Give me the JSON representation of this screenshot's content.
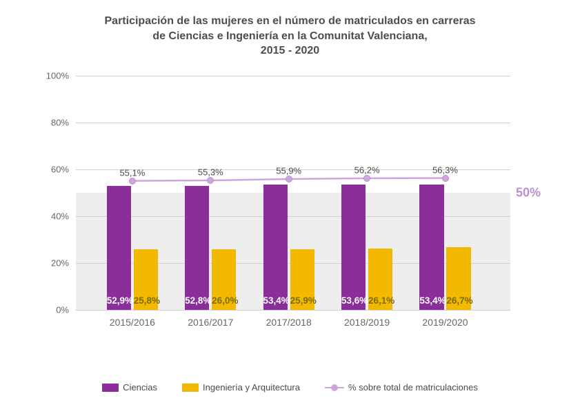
{
  "chart": {
    "type": "bar+line",
    "title_lines": [
      "Participación de las mujeres en el número de matriculados en carreras",
      "de Ciencias e Ingeniería en la Comunitat Valenciana,",
      "2015 - 2020"
    ],
    "title_color": "#4d4d4d",
    "title_fontsize": 16,
    "background_color": "#ffffff",
    "plot_background": "#ffffff",
    "band50_color": "#eeeeee",
    "grid_color": "#cfcfcf",
    "axis_label_color": "#666666",
    "ylim": [
      0,
      100
    ],
    "ytick_step": 20,
    "yticks": [
      "0%",
      "20%",
      "40%",
      "60%",
      "80%",
      "100%"
    ],
    "reference_line": {
      "value": 50,
      "label": "50%",
      "label_color": "#b98fce"
    },
    "categories": [
      "2015/2016",
      "2016/2017",
      "2017/2018",
      "2018/2019",
      "2019/2020"
    ],
    "group_width_pct": 18,
    "bar_gap_pct": 0.6,
    "bar_width_pct": 5.6,
    "series_bars": [
      {
        "name": "Ciencias",
        "color": "#8a2f9a",
        "label_color": "#ffffff",
        "values": [
          52.9,
          52.8,
          53.4,
          53.6,
          53.4
        ],
        "labels": [
          "52,9%",
          "52,8%",
          "53,4%",
          "53,6%",
          "53,4%"
        ],
        "label_fontsize": 13.5
      },
      {
        "name": "Ingeniería y Arquitectura",
        "color": "#f2b900",
        "label_color": "#7d6a00",
        "values": [
          25.8,
          26.0,
          25.9,
          26.1,
          26.7
        ],
        "labels": [
          "25,8%",
          "26,0%",
          "25,9%",
          "26,1%",
          "26,7%"
        ],
        "label_fontsize": 13.5
      }
    ],
    "series_line": {
      "name": "% sobre total de matriculaciones",
      "color": "#cfa5dd",
      "marker_fill": "#cfa5dd",
      "marker_border": "#b98fce",
      "line_width": 2.5,
      "marker_size": 10,
      "values": [
        55.1,
        55.3,
        55.9,
        56.2,
        56.3
      ],
      "labels": [
        "55,1%",
        "55,3%",
        "55,9%",
        "56,2%",
        "56,3%"
      ],
      "label_color": "#4a4a4a",
      "label_fontsize": 13
    },
    "legend": {
      "items": [
        "Ciencias",
        "Ingeniería y Arquitectura",
        "% sobre total de matriculaciones"
      ],
      "fontsize": 13,
      "text_color": "#4a4a4a"
    }
  }
}
